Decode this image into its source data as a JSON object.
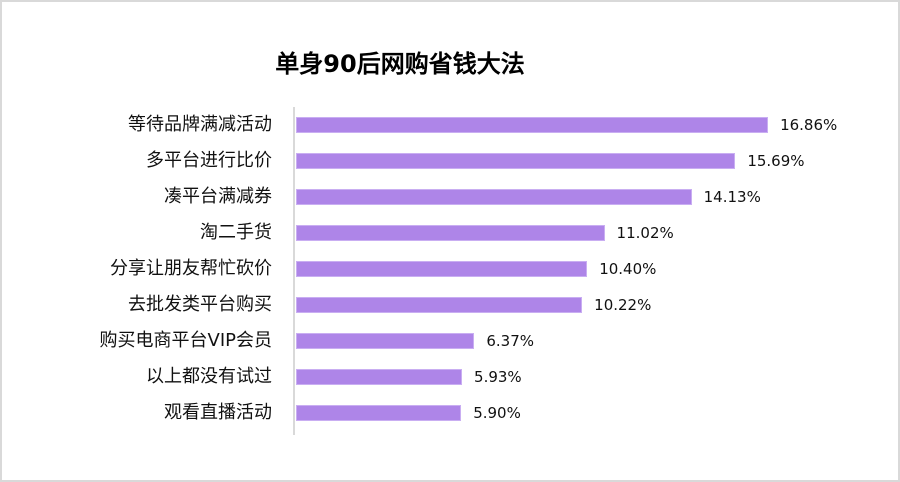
{
  "chart_data": {
    "type": "bar",
    "orientation": "horizontal",
    "title": "单身90后网购省钱大法",
    "xlabel": "",
    "ylabel": "",
    "categories": [
      "等待品牌满减活动",
      "多平台进行比价",
      "凑平台满减券",
      "淘二手货",
      "分享让朋友帮忙砍价",
      "去批发类平台购买",
      "购买电商平台VIP会员",
      "以上都没有试过",
      "观看直播活动"
    ],
    "values": [
      16.86,
      15.69,
      14.13,
      11.02,
      10.4,
      10.22,
      6.37,
      5.93,
      5.9
    ],
    "value_labels": [
      "16.86%",
      "15.69%",
      "14.13%",
      "11.02%",
      "10.40%",
      "10.22%",
      "6.37%",
      "5.93%",
      "5.90%"
    ],
    "unit": "%",
    "grid": false,
    "legend": null,
    "colors": {
      "bar": "#ae85e8",
      "axis": "#d9d9d9"
    }
  }
}
